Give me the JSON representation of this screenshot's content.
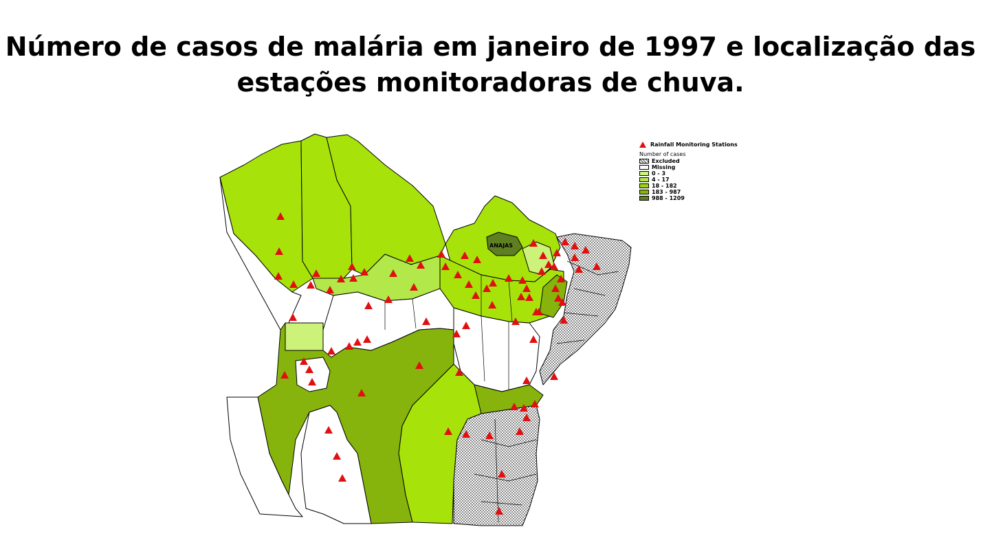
{
  "title": {
    "line1": "Número de casos de malária em janeiro de 1997 e localização das",
    "line2": "estações monitoradoras de chuva."
  },
  "legend": {
    "stations_label": "Rainfall Monitoring Stations",
    "cases_header": "Number of cases",
    "classes": [
      {
        "label": "Excluded",
        "color": "#d8d8d8",
        "pattern": "dots"
      },
      {
        "label": "Missing",
        "color": "#ffffff"
      },
      {
        "label": "0 - 3",
        "color": "#ccf27a"
      },
      {
        "label": "4 - 17",
        "color": "#b2e84a"
      },
      {
        "label": "18 - 182",
        "color": "#9ed60c"
      },
      {
        "label": "183 - 987",
        "color": "#86b40c"
      },
      {
        "label": "988 - 1209",
        "color": "#5e7f22"
      }
    ]
  },
  "map": {
    "highlight_label": "ANAJAS",
    "marker_color": "#e01010",
    "border_color": "#000000"
  }
}
